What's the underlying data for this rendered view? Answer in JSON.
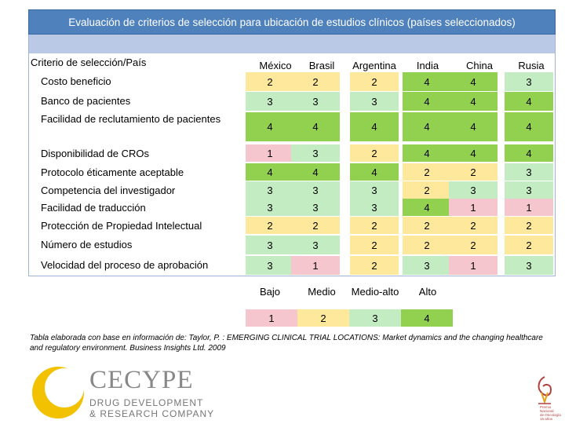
{
  "title": "Evaluación de criterios de selección para ubicación de estudios clínicos (países seleccionados)",
  "header": {
    "criteria_label": "Criterio de selección/País",
    "countries": [
      "México",
      "Brasil",
      "Argentina",
      "India",
      "China",
      "Rusia"
    ]
  },
  "rows": [
    {
      "label": "Costo beneficio",
      "values": [
        2,
        2,
        2,
        4,
        4,
        3
      ]
    },
    {
      "label": "Banco de pacientes",
      "values": [
        3,
        3,
        3,
        4,
        4,
        4
      ]
    },
    {
      "label": "Facilidad de reclutamiento de pacientes",
      "values": [
        4,
        4,
        4,
        4,
        4,
        4
      ]
    },
    {
      "label": "Disponibilidad de CROs",
      "values": [
        1,
        3,
        2,
        4,
        4,
        4
      ]
    },
    {
      "label": "Protocolo éticamente aceptable",
      "values": [
        4,
        4,
        4,
        2,
        2,
        3
      ]
    },
    {
      "label": "Competencia del investigador",
      "values": [
        3,
        3,
        3,
        2,
        3,
        3
      ]
    },
    {
      "label": "Facilidad de traducción",
      "values": [
        3,
        3,
        3,
        4,
        1,
        1
      ]
    },
    {
      "label": "Protección de Propiedad Intelectual",
      "values": [
        2,
        2,
        2,
        2,
        2,
        2
      ]
    },
    {
      "label": "Número de estudios",
      "values": [
        3,
        3,
        2,
        2,
        2,
        2
      ]
    },
    {
      "label": "Velocidad del proceso de aprobación",
      "values": [
        3,
        1,
        2,
        3,
        1,
        3
      ]
    }
  ],
  "legend": {
    "labels": [
      "Bajo",
      "Medio",
      "Medio-alto",
      "Alto"
    ],
    "values": [
      "1",
      "2",
      "3",
      "4"
    ]
  },
  "colors": {
    "1": "#f6c6cf",
    "2": "#fde89c",
    "3": "#c3ecc3",
    "4": "#92d050",
    "title_band": "#4f81bd"
  },
  "caption": "Tabla elaborada con base en información de: Taylor, P. : EMERGING CLINICAL TRIAL LOCATIONS: Market dynamics and the changing healthcare and regulatory environment. Business Insights Ltd. 2009",
  "logo": {
    "name": "CECYPE",
    "line1": "DRUG DEVELOPMENT",
    "line2": "& RESEARCH COMPANY"
  },
  "badge": {
    "lines": [
      "Premio",
      "Nacional",
      "de Oncología",
      "15 años"
    ]
  }
}
